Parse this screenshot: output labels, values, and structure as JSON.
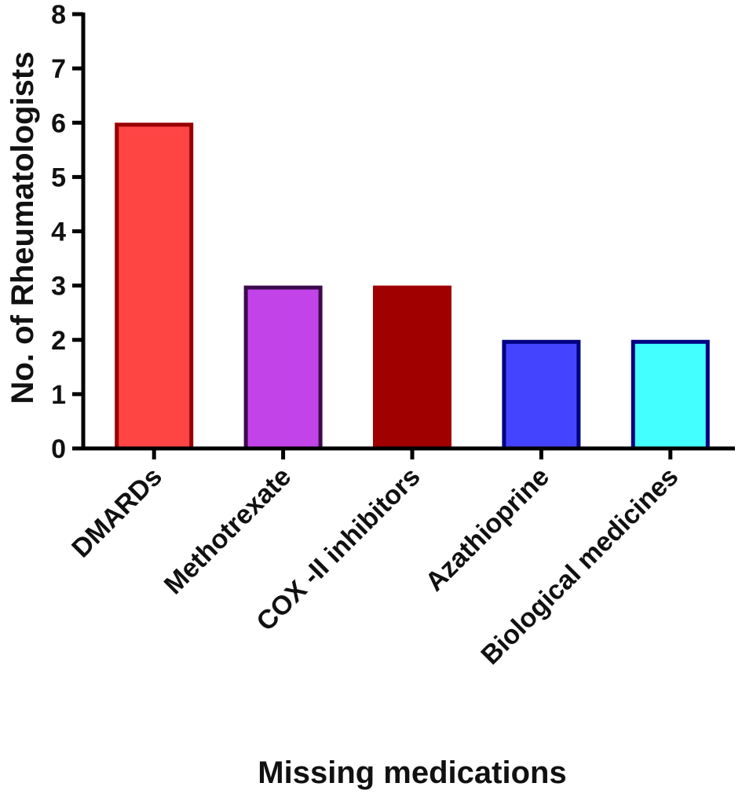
{
  "chart_data": {
    "type": "bar",
    "title": "",
    "xlabel": "Missing medications",
    "ylabel": "No. of Rheumatologists",
    "categories": [
      "DMARDs",
      "Methotrexate",
      "COX -II inhibitors",
      "Azathioprine",
      "Biological medicines"
    ],
    "values": [
      6,
      3,
      3,
      2,
      2
    ],
    "ylim": [
      0,
      8
    ],
    "yticks": [
      0,
      1,
      2,
      3,
      4,
      5,
      6,
      7,
      8
    ],
    "yticks_labels": [
      "0",
      "1",
      "2",
      "3",
      "4",
      "5",
      "6",
      "7",
      "8"
    ],
    "grid": false,
    "legend": "none",
    "bar_colors": [
      {
        "fill": "#ff4444",
        "stroke": "#990000"
      },
      {
        "fill": "#c244e8",
        "stroke": "#3c0a4c"
      },
      {
        "fill": "#a00000",
        "stroke": "#a00000"
      },
      {
        "fill": "#4444ff",
        "stroke": "#000080"
      },
      {
        "fill": "#44ffff",
        "stroke": "#000080"
      }
    ],
    "axis_color": "#000000"
  }
}
